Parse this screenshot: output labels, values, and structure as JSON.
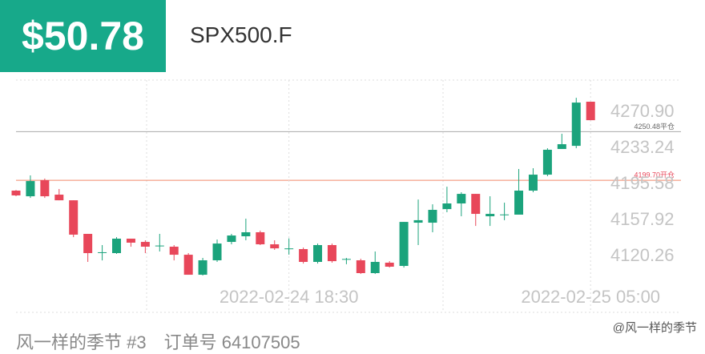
{
  "header": {
    "price": "$50.78",
    "symbol": "SPX500.F"
  },
  "footer": {
    "user": "风一样的季节 #3",
    "order": "订单号 64107505",
    "watermark": "@风一样的季节"
  },
  "chart_data": {
    "type": "candlestick",
    "categories": [
      null,
      null,
      null,
      null,
      null,
      null,
      null,
      null,
      null,
      null,
      null,
      null,
      null,
      null,
      null,
      null,
      null,
      null,
      null,
      "2022-02-24 18:30",
      null,
      null,
      null,
      null,
      null,
      null,
      null,
      null,
      null,
      null,
      null,
      null,
      null,
      null,
      null,
      null,
      null,
      null,
      null,
      null,
      "2022-02-25 05:00"
    ],
    "open": [
      4188.9,
      4183.0,
      4199.8,
      4184.7,
      4178.8,
      4143.7,
      4124.0,
      4123.6,
      4138.7,
      4135.3,
      4131.0,
      4130.3,
      4121.9,
      4101.0,
      4116.1,
      4135.3,
      4141.2,
      4145.4,
      4132.8,
      4128.0,
      4127.8,
      4114.4,
      4132.0,
      4117.0,
      4116.1,
      4102.7,
      4113.6,
      4110.2,
      4155.4,
      4155.4,
      4169.6,
      4175.5,
      4185.5,
      4162.1,
      4163.8,
      4163.8,
      4188.9,
      4205.6,
      4232.4,
      4235.7,
      4281.8
    ],
    "high": [
      4189.5,
      4204.8,
      4201.5,
      4190.6,
      4178.8,
      4143.7,
      4132.0,
      4140.3,
      4138.7,
      4137.0,
      4143.7,
      4132.0,
      4123.6,
      4118.6,
      4137.8,
      4143.7,
      4159.6,
      4147.1,
      4137.0,
      4139.0,
      4129.4,
      4133.6,
      4133.6,
      4118.6,
      4117.7,
      4125.3,
      4115.2,
      4156.2,
      4179.6,
      4174.6,
      4193.0,
      4187.2,
      4185.5,
      4183.0,
      4176.3,
      4211.5,
      4212.3,
      4233.2,
      4248.3,
      4285.9,
      4281.8
    ],
    "low": [
      4183.0,
      4181.3,
      4181.3,
      4178.8,
      4140.3,
      4114.4,
      4116.0,
      4122.8,
      4130.3,
      4123.6,
      4125.3,
      4116.0,
      4101.0,
      4100.2,
      4114.4,
      4132.8,
      4137.0,
      4132.0,
      4127.0,
      4122.0,
      4112.7,
      4112.7,
      4113.6,
      4112.0,
      4101.8,
      4101.8,
      4108.5,
      4108.5,
      4132.0,
      4145.4,
      4166.3,
      4162.1,
      4152.0,
      4152.0,
      4158.0,
      4163.8,
      4187.2,
      4204.0,
      4232.4,
      4233.2,
      4262.5
    ],
    "close": [
      4183.9,
      4198.9,
      4183.0,
      4178.8,
      4142.9,
      4123.6,
      4124.5,
      4138.7,
      4134.5,
      4130.3,
      4131.5,
      4121.9,
      4101.0,
      4116.1,
      4133.6,
      4142.0,
      4145.4,
      4132.8,
      4128.6,
      4128.5,
      4114.4,
      4132.0,
      4115.2,
      4117.5,
      4102.7,
      4114.4,
      4109.4,
      4156.2,
      4158.0,
      4168.8,
      4175.5,
      4185.5,
      4164.6,
      4164.6,
      4164.0,
      4188.9,
      4205.6,
      4231.6,
      4237.4,
      4280.9,
      4262.5
    ],
    "up_color": "#1ba37c",
    "down_color": "#e8475a",
    "ylim": [
      4086.8,
      4304.4
    ],
    "yticks": [
      4120.26,
      4157.92,
      4195.58,
      4233.24,
      {
        "value": 4270.9,
        "label": "4270.90"
      }
    ],
    "reference_lines": [
      {
        "value": 4250.48,
        "label": "4250.48平仓",
        "color": "#aaaaaa"
      },
      {
        "value": 4199.7,
        "label": "4199.70开仓",
        "color": "#f0876a"
      }
    ]
  }
}
